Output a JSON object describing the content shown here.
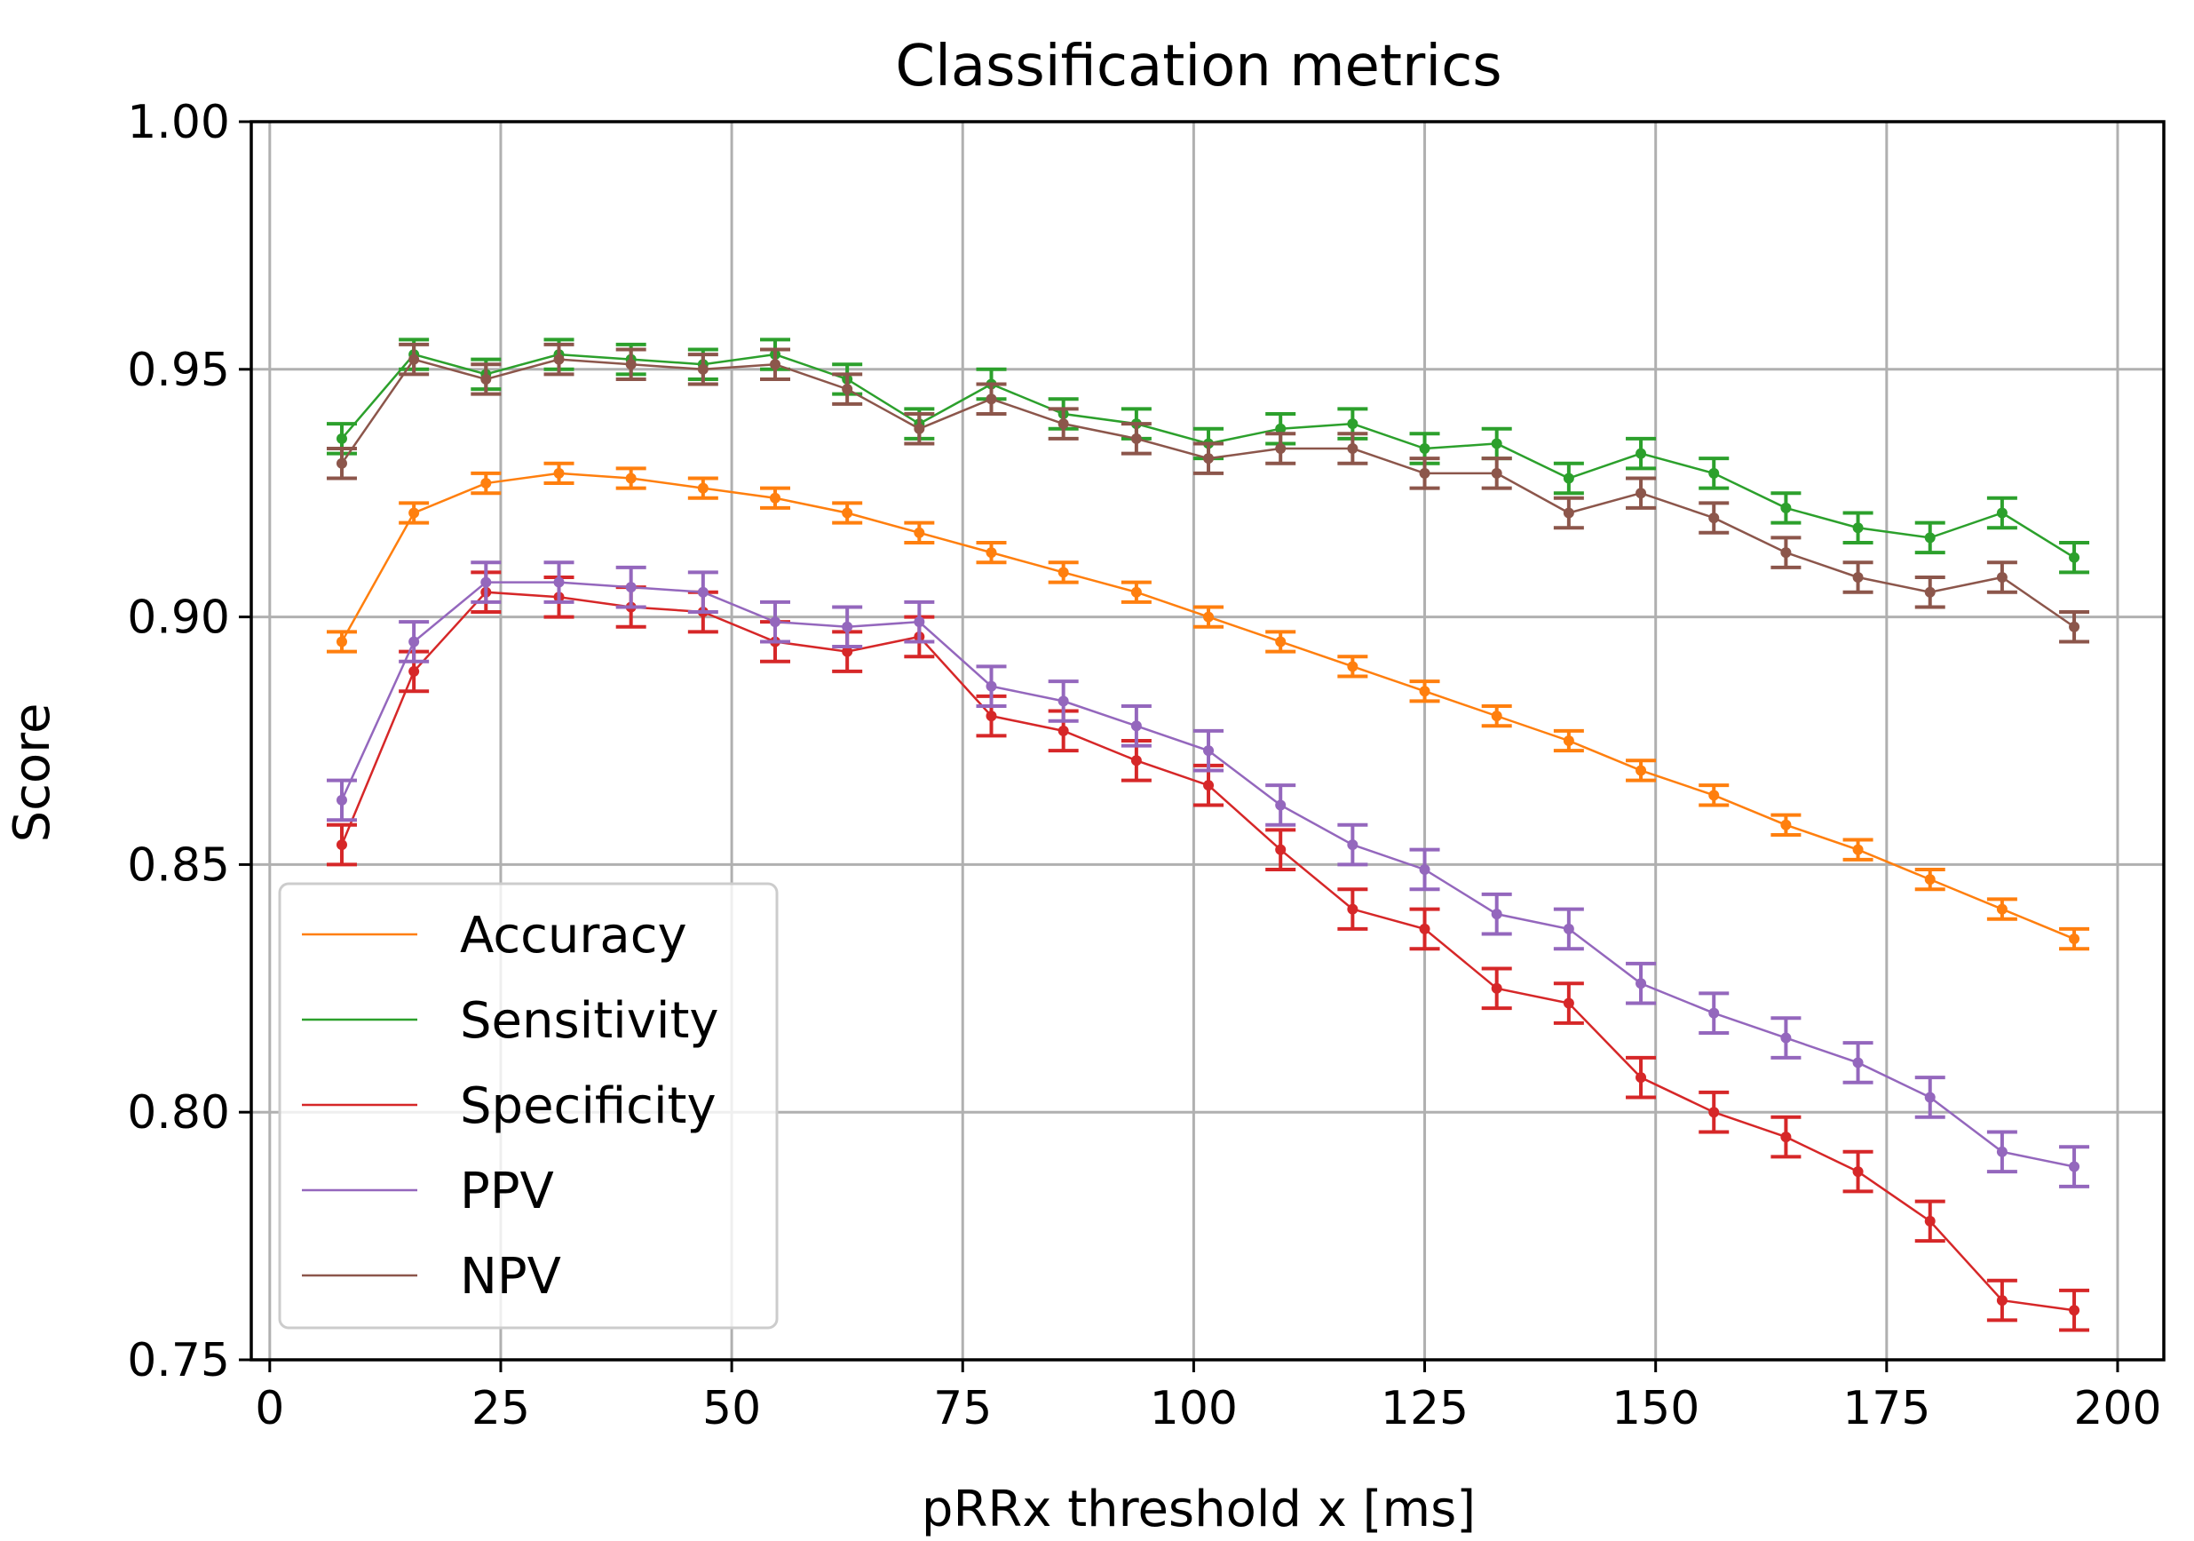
{
  "chart_data": {
    "type": "line",
    "title": "Classification metrics",
    "xlabel": "pRRx threshold x [ms]",
    "ylabel": "Score",
    "xlim": [
      -2,
      205
    ],
    "ylim": [
      0.75,
      1.0
    ],
    "xticks": [
      0,
      25,
      50,
      75,
      100,
      125,
      150,
      175,
      200
    ],
    "xtick_labels": [
      "0",
      "25",
      "50",
      "75",
      "100",
      "125",
      "150",
      "175",
      "200"
    ],
    "yticks": [
      0.75,
      0.8,
      0.85,
      0.9,
      0.95,
      1.0
    ],
    "ytick_labels": [
      "0.75",
      "0.80",
      "0.85",
      "0.90",
      "0.95",
      "1.00"
    ],
    "grid": true,
    "legend_position": "lower-left",
    "x": [
      7.8,
      15.6,
      23.4,
      31.3,
      39.1,
      46.9,
      54.7,
      62.5,
      70.3,
      78.1,
      85.9,
      93.8,
      101.6,
      109.4,
      117.2,
      125.0,
      132.8,
      140.6,
      148.4,
      156.3,
      164.1,
      171.9,
      179.7,
      187.5,
      195.3
    ],
    "series": [
      {
        "name": "Accuracy",
        "color": "#ff7f0e",
        "values": [
          0.895,
          0.921,
          0.927,
          0.929,
          0.928,
          0.926,
          0.924,
          0.921,
          0.917,
          0.913,
          0.909,
          0.905,
          0.9,
          0.895,
          0.89,
          0.885,
          0.88,
          0.875,
          0.869,
          0.864,
          0.858,
          0.853,
          0.847,
          0.841,
          0.835
        ],
        "errors": [
          0.002,
          0.002,
          0.002,
          0.002,
          0.002,
          0.002,
          0.002,
          0.002,
          0.002,
          0.002,
          0.002,
          0.002,
          0.002,
          0.002,
          0.002,
          0.002,
          0.002,
          0.002,
          0.002,
          0.002,
          0.002,
          0.002,
          0.002,
          0.002,
          0.002
        ]
      },
      {
        "name": "Sensitivity",
        "color": "#2ca02c",
        "values": [
          0.936,
          0.953,
          0.949,
          0.953,
          0.952,
          0.951,
          0.953,
          0.948,
          0.939,
          0.947,
          0.941,
          0.939,
          0.935,
          0.938,
          0.939,
          0.934,
          0.935,
          0.928,
          0.933,
          0.929,
          0.922,
          0.918,
          0.916,
          0.921,
          0.912
        ],
        "errors": [
          0.003,
          0.003,
          0.003,
          0.003,
          0.003,
          0.003,
          0.003,
          0.003,
          0.003,
          0.003,
          0.003,
          0.003,
          0.003,
          0.003,
          0.003,
          0.003,
          0.003,
          0.003,
          0.003,
          0.003,
          0.003,
          0.003,
          0.003,
          0.003,
          0.003
        ]
      },
      {
        "name": "Specificity",
        "color": "#d62728",
        "values": [
          0.854,
          0.889,
          0.905,
          0.904,
          0.902,
          0.901,
          0.895,
          0.893,
          0.896,
          0.88,
          0.877,
          0.871,
          0.866,
          0.853,
          0.841,
          0.837,
          0.825,
          0.822,
          0.807,
          0.8,
          0.795,
          0.788,
          0.778,
          0.762,
          0.76
        ],
        "errors": [
          0.004,
          0.004,
          0.004,
          0.004,
          0.004,
          0.004,
          0.004,
          0.004,
          0.004,
          0.004,
          0.004,
          0.004,
          0.004,
          0.004,
          0.004,
          0.004,
          0.004,
          0.004,
          0.004,
          0.004,
          0.004,
          0.004,
          0.004,
          0.004,
          0.004
        ]
      },
      {
        "name": "PPV",
        "color": "#9467bd",
        "values": [
          0.863,
          0.895,
          0.907,
          0.907,
          0.906,
          0.905,
          0.899,
          0.898,
          0.899,
          0.886,
          0.883,
          0.878,
          0.873,
          0.862,
          0.854,
          0.849,
          0.84,
          0.837,
          0.826,
          0.82,
          0.815,
          0.81,
          0.803,
          0.792,
          0.789
        ],
        "errors": [
          0.004,
          0.004,
          0.004,
          0.004,
          0.004,
          0.004,
          0.004,
          0.004,
          0.004,
          0.004,
          0.004,
          0.004,
          0.004,
          0.004,
          0.004,
          0.004,
          0.004,
          0.004,
          0.004,
          0.004,
          0.004,
          0.004,
          0.004,
          0.004,
          0.004
        ]
      },
      {
        "name": "NPV",
        "color": "#8c564b",
        "values": [
          0.931,
          0.952,
          0.948,
          0.952,
          0.951,
          0.95,
          0.951,
          0.946,
          0.938,
          0.944,
          0.939,
          0.936,
          0.932,
          0.934,
          0.934,
          0.929,
          0.929,
          0.921,
          0.925,
          0.92,
          0.913,
          0.908,
          0.905,
          0.908,
          0.898
        ],
        "errors": [
          0.003,
          0.003,
          0.003,
          0.003,
          0.003,
          0.003,
          0.003,
          0.003,
          0.003,
          0.003,
          0.003,
          0.003,
          0.003,
          0.003,
          0.003,
          0.003,
          0.003,
          0.003,
          0.003,
          0.003,
          0.003,
          0.003,
          0.003,
          0.003,
          0.003
        ]
      }
    ]
  }
}
